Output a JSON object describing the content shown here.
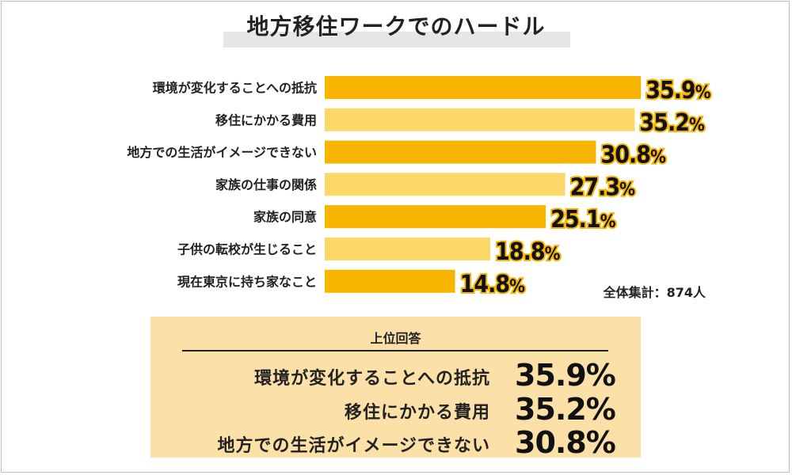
{
  "chart_data": {
    "type": "bar",
    "orientation": "horizontal",
    "title": "地方移住ワークでのハードル",
    "categories": [
      "環境が変化することへの抵抗",
      "移住にかかる費用",
      "地方での生活がイメージできない",
      "家族の仕事の関係",
      "家族の同意",
      "子供の転校が生じること",
      "現在東京に持ち家なこと"
    ],
    "values": [
      35.9,
      35.2,
      30.8,
      27.3,
      25.1,
      18.8,
      14.8
    ],
    "value_labels": [
      "35.9",
      "35.2",
      "30.8",
      "27.3",
      "25.1",
      "18.8",
      "14.8"
    ],
    "unit": "%",
    "bar_colors": [
      "#f7b500",
      "#fdd768",
      "#f7b500",
      "#fdd768",
      "#f7b500",
      "#fdd768",
      "#f7b500"
    ],
    "annotation": "全体集計：874人"
  },
  "summary": {
    "heading": "上位回答",
    "items": [
      {
        "label": "環境が変化することへの抵抗",
        "value": "35.9%"
      },
      {
        "label": "移住にかかる費用",
        "value": "35.2%"
      },
      {
        "label": "地方での生活がイメージできない",
        "value": "30.8%"
      }
    ]
  },
  "colors": {
    "accent": "#f7b500",
    "accent_light": "#fdd768",
    "summary_bg": "#fbe0a7",
    "title_band": "#e6e6e6"
  }
}
